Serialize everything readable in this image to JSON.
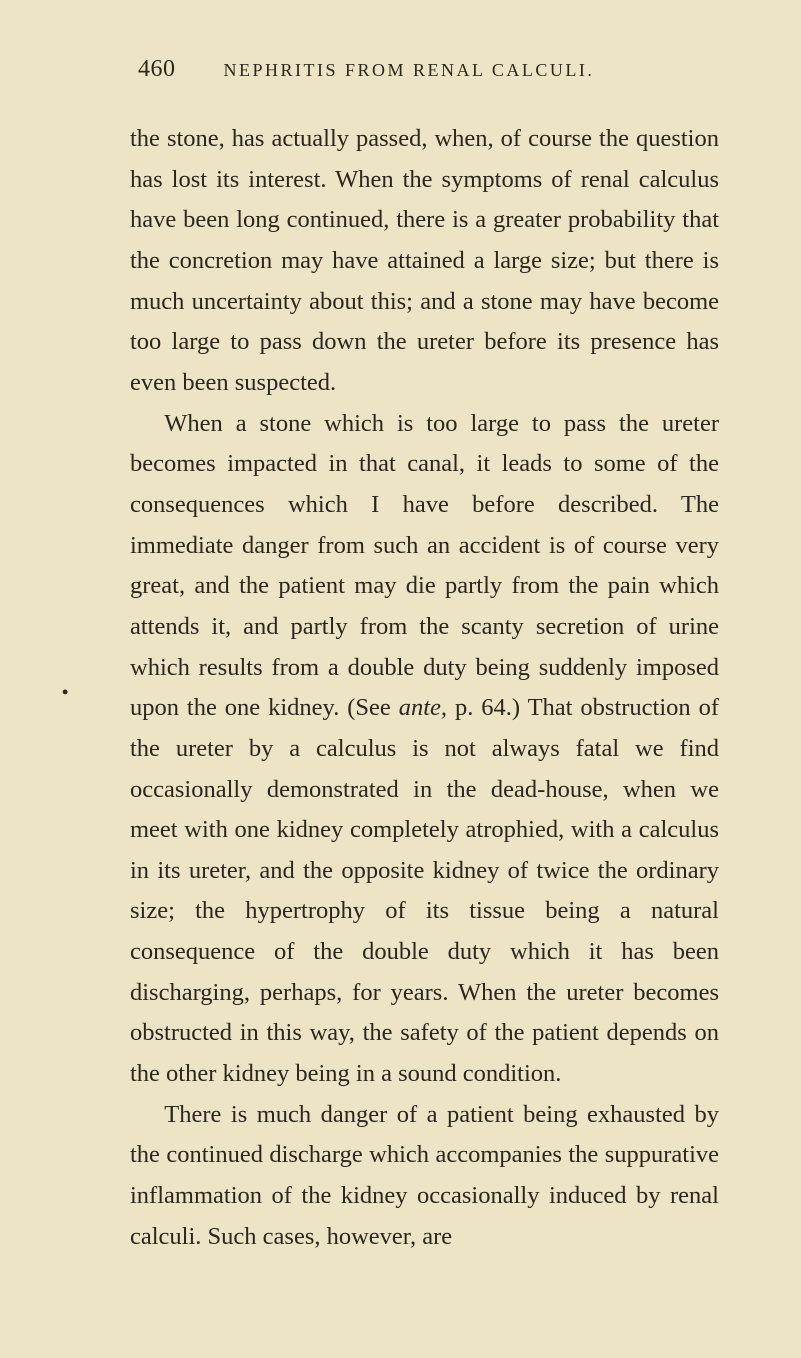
{
  "header": {
    "page_number": "460",
    "running_title": "NEPHRITIS FROM RENAL CALCULI."
  },
  "margin_mark": "•",
  "paragraphs": {
    "p1": "the stone, has actually passed, when, of course the question has lost its interest. When the symptoms of renal calculus have been long continued, there is a greater probability that the concretion may have attained a large size; but there is much uncertainty about this; and a stone may have become too large to pass down the ureter before its presence has even been suspected.",
    "p2_pre": "When a stone which is too large to pass the ureter becomes impacted in that canal, it leads to some of the consequences which I have before described. The immediate danger from such an accident is of course very great, and the patient may die partly from the pain which attends it, and partly from the scanty secretion of urine which results from a double duty being suddenly imposed upon the one kidney. (See ",
    "p2_ante": "ante,",
    "p2_post": " p. 64.) That obstruction of the ureter by a calculus is not always fatal we find occasionally demonstrated in the dead-house, when we meet with one kidney completely atrophied, with a calculus in its ureter, and the opposite kidney of twice the ordinary size; the hypertrophy of its tissue being a natural consequence of the double duty which it has been discharging, perhaps, for years. When the ureter becomes obstructed in this way, the safety of the patient depends on the other kidney being in a sound condition.",
    "p3": "There is much danger of a patient being exhausted by the continued discharge which accompanies the suppurative inflammation of the kidney occasionally induced by renal calculi. Such cases, however, are"
  },
  "styles": {
    "background_color": "#ede4c5",
    "text_color": "#2a2620",
    "page_number_fontsize": 24,
    "running_title_fontsize": 18,
    "body_fontsize": 24.5,
    "line_height": 1.66
  }
}
